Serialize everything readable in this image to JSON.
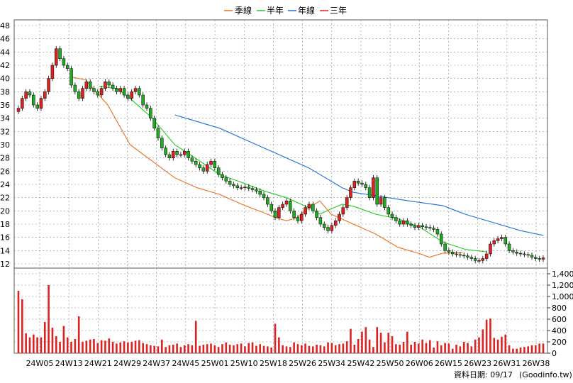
{
  "chart_data": {
    "type": "candlestick-with-volume",
    "legend": [
      {
        "label": "季線",
        "color": "#e8711c"
      },
      {
        "label": "半年",
        "color": "#22cc22"
      },
      {
        "label": "年線",
        "color": "#1f6fd6"
      },
      {
        "label": "三年",
        "color": "#dd2222"
      }
    ],
    "legend_placement": "top-center",
    "grid": true,
    "price_axis": {
      "ylim": [
        12,
        48
      ],
      "ticks": [
        "12",
        "14",
        "16",
        "18",
        "20",
        "22",
        "24",
        "26",
        "28",
        "30",
        "32",
        "34",
        "36",
        "38",
        "40",
        "42",
        "44",
        "46",
        "48"
      ]
    },
    "volume_axis": {
      "ylim": [
        0,
        1400
      ],
      "ticks": [
        "0",
        "200",
        "400",
        "600",
        "800",
        "1,000",
        "1,200",
        "1,400"
      ]
    },
    "x_ticks": [
      "24W05",
      "24W13",
      "24W21",
      "24W29",
      "24W37",
      "24W45",
      "25W01",
      "25W10",
      "25W18",
      "25W26",
      "25W34",
      "25W42",
      "25W50",
      "26W06",
      "26W15",
      "26W23",
      "26W31",
      "26W38"
    ],
    "candle_count": 140,
    "close": [
      35.5,
      37.0,
      38.0,
      37.5,
      36.0,
      35.5,
      37.0,
      38.0,
      40.0,
      42.0,
      44.5,
      43.0,
      42.0,
      41.5,
      39.0,
      38.0,
      37.0,
      38.5,
      39.5,
      38.5,
      38.0,
      37.5,
      38.5,
      39.5,
      39.0,
      38.5,
      38.0,
      38.5,
      37.5,
      37.0,
      38.0,
      38.5,
      37.5,
      36.0,
      35.5,
      34.0,
      32.5,
      31.0,
      29.5,
      28.5,
      28.0,
      29.0,
      28.5,
      28.5,
      29.0,
      28.0,
      27.5,
      27.0,
      26.5,
      26.0,
      27.0,
      27.5,
      26.5,
      25.5,
      25.0,
      24.5,
      24.0,
      23.8,
      23.5,
      23.5,
      23.6,
      23.4,
      23.2,
      23.0,
      22.5,
      22.0,
      21.0,
      20.0,
      19.0,
      20.5,
      21.0,
      21.5,
      20.0,
      19.0,
      18.5,
      19.5,
      20.5,
      21.0,
      20.0,
      19.0,
      18.0,
      17.5,
      17.0,
      17.8,
      18.5,
      19.5,
      20.5,
      22.0,
      23.5,
      24.5,
      24.2,
      24.0,
      23.5,
      22.0,
      25.0,
      21.0,
      22.0,
      20.5,
      19.5,
      19.0,
      18.5,
      18.0,
      18.5,
      18.0,
      17.8,
      17.5,
      17.8,
      17.6,
      17.5,
      17.4,
      17.2,
      16.5,
      15.0,
      14.0,
      13.8,
      13.5,
      13.4,
      13.3,
      13.2,
      13.0,
      12.8,
      12.5,
      12.5,
      12.8,
      13.5,
      15.0,
      15.5,
      15.8,
      16.0,
      15.0,
      14.0,
      13.8,
      13.6,
      13.5,
      13.4,
      13.3,
      13.0,
      12.8,
      12.7,
      12.9
    ],
    "volume": [
      1100,
      950,
      350,
      280,
      330,
      280,
      280,
      550,
      1200,
      450,
      300,
      200,
      480,
      280,
      200,
      250,
      650,
      200,
      220,
      240,
      250,
      180,
      230,
      220,
      260,
      200,
      170,
      190,
      210,
      190,
      200,
      220,
      230,
      180,
      160,
      140,
      130,
      120,
      240,
      110,
      140,
      150,
      170,
      110,
      140,
      160,
      140,
      570,
      130,
      150,
      160,
      170,
      140,
      110,
      160,
      190,
      150,
      140,
      160,
      170,
      120,
      180,
      190,
      130,
      160,
      130,
      120,
      100,
      520,
      280,
      140,
      120,
      110,
      190,
      160,
      140,
      170,
      130,
      120,
      150,
      140,
      120,
      190,
      180,
      140,
      160,
      170,
      210,
      430,
      150,
      250,
      380,
      460,
      240,
      110,
      460,
      360,
      190,
      360,
      300,
      160,
      150,
      200,
      380,
      150,
      200,
      170,
      240,
      180,
      230,
      100,
      210,
      140,
      180,
      170,
      80,
      150,
      120,
      200,
      180,
      120,
      240,
      280,
      420,
      590,
      610,
      270,
      240,
      290,
      330,
      140,
      80,
      80,
      100,
      110,
      120,
      140,
      140,
      170,
      170
    ],
    "ma_quarter_points": [
      [
        24,
        40.2
      ],
      [
        30,
        39.8
      ],
      [
        40,
        36
      ],
      [
        50,
        30
      ],
      [
        60,
        27.5
      ],
      [
        70,
        25
      ],
      [
        80,
        23.5
      ],
      [
        90,
        22.5
      ],
      [
        100,
        21
      ],
      [
        110,
        19.7
      ],
      [
        115,
        19
      ],
      [
        120,
        18.5
      ],
      [
        125,
        19
      ],
      [
        130,
        20.5
      ],
      [
        135,
        21.5
      ],
      [
        140,
        19.5
      ],
      [
        150,
        18.0
      ],
      [
        160,
        16.5
      ],
      [
        170,
        14.5
      ],
      [
        180,
        13.5
      ],
      [
        184,
        13
      ],
      [
        190,
        13.6
      ],
      [
        199,
        13.7
      ]
    ],
    "ma_halfyear_points": [
      [
        36,
        38.8
      ],
      [
        44,
        38.5
      ],
      [
        50,
        37
      ],
      [
        60,
        34
      ],
      [
        70,
        30
      ],
      [
        80,
        27.8
      ],
      [
        90,
        25.5
      ],
      [
        100,
        24.3
      ],
      [
        110,
        23
      ],
      [
        120,
        22
      ],
      [
        130,
        20.5
      ],
      [
        135,
        19.5
      ],
      [
        140,
        20.3
      ],
      [
        145,
        21
      ],
      [
        150,
        20.7
      ],
      [
        160,
        19.5
      ],
      [
        170,
        18.8
      ],
      [
        180,
        17.5
      ],
      [
        190,
        15.3
      ],
      [
        200,
        14.2
      ],
      [
        210,
        13.8
      ]
    ],
    "ma_year_points": [
      [
        70,
        34.5
      ],
      [
        90,
        32.5
      ],
      [
        110,
        29.5
      ],
      [
        130,
        26.5
      ],
      [
        145,
        23.5
      ],
      [
        150,
        22.8
      ],
      [
        160,
        22.3
      ],
      [
        175,
        21.5
      ],
      [
        190,
        20.8
      ],
      [
        200,
        19.5
      ],
      [
        215,
        18
      ],
      [
        225,
        17
      ],
      [
        235,
        16.3
      ]
    ],
    "footer_label": "資料日期: 09/17",
    "footer_source": "(Goodinfo.tw)"
  }
}
